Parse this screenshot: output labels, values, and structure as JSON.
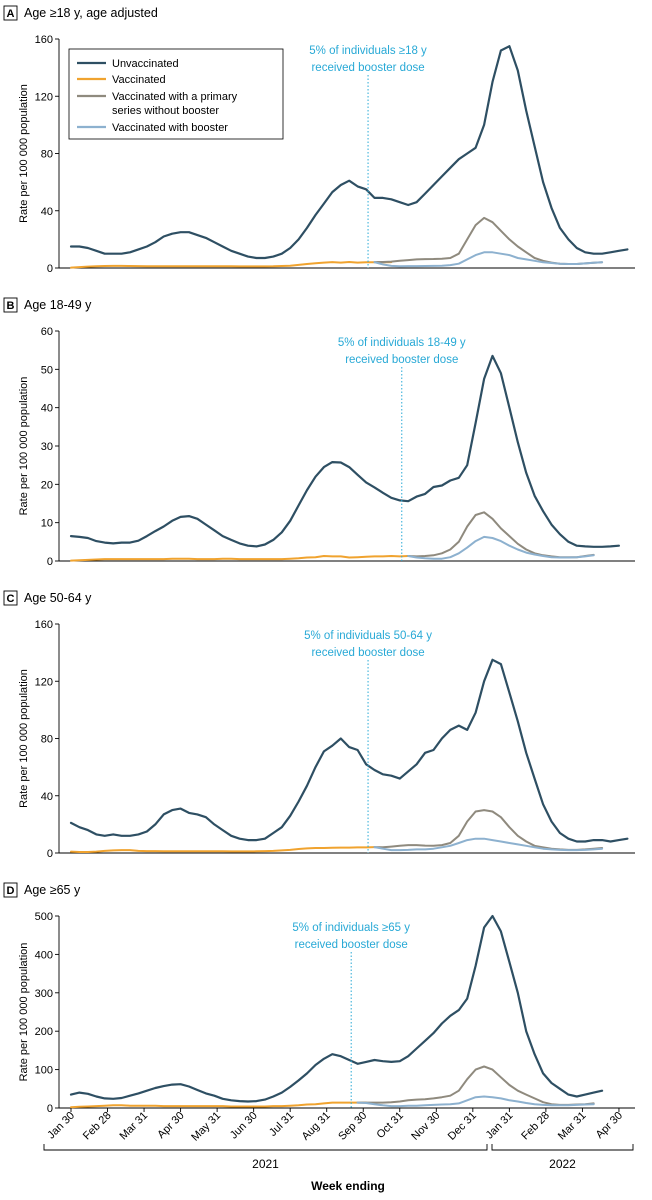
{
  "figure": {
    "xlabel": "Week ending",
    "ylabel": "Rate per 100 000 population",
    "x_ticks": [
      "Jan 30",
      "Feb 28",
      "Mar 31",
      "Apr 30",
      "May 31",
      "Jun 30",
      "Jul 31",
      "Aug 31",
      "Sep 30",
      "Oct 31",
      "Nov 30",
      "Dec 31",
      "Jan 31",
      "Feb 28",
      "Mar 31",
      "Apr 30"
    ],
    "years": [
      "2021",
      "2022"
    ],
    "colors": {
      "unvaccinated": "#2e4f63",
      "vaccinated": "#f0a32f",
      "primary_no_booster": "#8f8a7e",
      "with_booster": "#8db1cf",
      "annotation": "#28a9d6",
      "axis": "#000000"
    }
  },
  "legend": [
    {
      "key": "unvaccinated",
      "label": "Unvaccinated"
    },
    {
      "key": "vaccinated",
      "label": "Vaccinated"
    },
    {
      "key": "primary_no_booster",
      "label": "Vaccinated with a primary series without booster"
    },
    {
      "key": "with_booster",
      "label": "Vaccinated with booster"
    }
  ],
  "chart_data": [
    {
      "type": "line",
      "panel": "A",
      "title": "Age ≥18 y, age adjusted",
      "ylim": [
        0,
        160
      ],
      "yticks": [
        0,
        40,
        80,
        120,
        160
      ],
      "annotation": {
        "line1": "5% of individuals ≥18 y",
        "line2": "received booster dose",
        "x_week": 35
      },
      "series": {
        "unvaccinated": [
          15,
          15,
          14,
          12,
          10,
          10,
          10,
          11,
          13,
          15,
          18,
          22,
          24,
          25,
          25,
          23,
          21,
          18,
          15,
          12,
          10,
          8,
          7,
          7,
          8,
          10,
          14,
          20,
          28,
          37,
          45,
          53,
          58,
          61,
          57,
          55,
          49,
          49,
          48,
          46,
          44,
          46,
          52,
          58,
          64,
          70,
          76,
          80,
          84,
          100,
          130,
          152,
          155,
          138,
          110,
          85,
          60,
          42,
          28,
          20,
          14,
          11,
          10,
          10,
          11,
          12,
          13
        ],
        "vaccinated": [
          0.3,
          0.6,
          1,
          1.2,
          1.4,
          1.5,
          1.5,
          1.4,
          1.3,
          1.2,
          1.2,
          1.2,
          1.2,
          1.2,
          1.2,
          1.2,
          1.2,
          1.2,
          1.2,
          1.2,
          1.1,
          1.1,
          1.1,
          1.1,
          1.2,
          1.4,
          1.6,
          2.2,
          2.8,
          3.3,
          3.8,
          4.1,
          3.8,
          4.2,
          3.8,
          4.0,
          4.0,
          4.0,
          4.1
        ],
        "primary_no_booster": [
          4.1,
          4.2,
          4.5,
          5,
          5.5,
          6,
          6.2,
          6.3,
          6.5,
          7,
          10,
          20,
          30,
          35,
          32,
          26,
          20,
          15,
          11,
          7,
          5,
          3.8,
          3,
          2.8,
          2.8,
          3.2,
          3.6,
          4
        ],
        "with_booster": [
          4.1,
          2.5,
          1.5,
          1.2,
          1.3,
          1.3,
          1.4,
          1.5,
          1.6,
          2,
          3,
          6,
          9,
          11,
          11,
          10,
          9,
          7,
          6,
          5,
          4,
          3.5,
          3,
          2.8,
          2.8,
          3.2,
          3.6,
          4
        ]
      }
    },
    {
      "type": "line",
      "panel": "B",
      "title": "Age 18-49 y",
      "ylim": [
        0,
        60
      ],
      "yticks": [
        0,
        10,
        20,
        30,
        40,
        50,
        60
      ],
      "annotation": {
        "line1": "5% of individuals 18-49 y",
        "line2": "received booster dose",
        "x_week": 39
      },
      "series": {
        "unvaccinated": [
          6.5,
          6.3,
          6,
          5.2,
          4.8,
          4.6,
          4.8,
          4.8,
          5.3,
          6.5,
          7.8,
          9,
          10.5,
          11.5,
          11.7,
          11,
          9.5,
          8,
          6.5,
          5.5,
          4.6,
          4,
          3.8,
          4.3,
          5.5,
          7.5,
          10.5,
          14.5,
          18.5,
          22,
          24.5,
          25.8,
          25.7,
          24.5,
          22.5,
          20.5,
          19.2,
          17.8,
          16.5,
          15.8,
          15.6,
          16.8,
          17.5,
          19.3,
          19.7,
          21,
          21.7,
          25,
          36,
          47.5,
          53.5,
          49,
          40,
          31,
          23,
          17,
          13,
          9.5,
          7,
          5,
          4,
          3.8,
          3.7,
          3.7,
          3.8,
          4
        ],
        "vaccinated": [
          0.1,
          0.2,
          0.3,
          0.4,
          0.5,
          0.5,
          0.5,
          0.5,
          0.5,
          0.5,
          0.5,
          0.5,
          0.6,
          0.6,
          0.6,
          0.5,
          0.5,
          0.5,
          0.6,
          0.6,
          0.5,
          0.5,
          0.5,
          0.5,
          0.5,
          0.5,
          0.6,
          0.7,
          0.9,
          1,
          1.3,
          1.2,
          1.2,
          0.9,
          1,
          1.1,
          1.2,
          1.2,
          1.3,
          1.2,
          1.3
        ],
        "primary_no_booster": [
          1.3,
          1.2,
          1.3,
          1.5,
          2,
          3,
          5,
          9,
          12,
          12.7,
          11,
          8.5,
          6.5,
          4.5,
          3,
          2,
          1.5,
          1.2,
          1,
          1,
          1,
          1.3,
          1.6
        ],
        "with_booster": [
          1.3,
          0.9,
          0.7,
          0.6,
          0.6,
          1,
          2,
          3.5,
          5.2,
          6.3,
          6,
          5.2,
          4,
          3,
          2.2,
          1.7,
          1.3,
          1,
          0.9,
          0.9,
          1,
          1.2,
          1.5
        ]
      }
    },
    {
      "type": "line",
      "panel": "C",
      "title": "Age 50-64 y",
      "ylim": [
        0,
        160
      ],
      "yticks": [
        0,
        40,
        80,
        120,
        160
      ],
      "annotation": {
        "line1": "5% of individuals 50-64 y",
        "line2": "received booster dose",
        "x_week": 35
      },
      "series": {
        "unvaccinated": [
          21,
          18,
          16,
          13,
          12,
          13,
          12,
          12,
          13,
          15,
          20,
          27,
          30,
          31,
          28,
          27,
          25,
          20,
          16,
          12,
          10,
          9,
          9,
          10,
          14,
          18,
          26,
          36,
          47,
          60,
          71,
          75,
          80,
          74,
          72,
          62,
          58,
          55,
          54,
          52,
          57,
          62,
          70,
          72,
          80,
          86,
          89,
          86,
          98,
          120,
          135,
          132,
          112,
          92,
          70,
          52,
          34,
          22,
          14,
          10,
          8,
          8,
          9,
          9,
          8,
          9,
          10
        ],
        "vaccinated": [
          1,
          0.7,
          0.7,
          1,
          1.5,
          1.8,
          2,
          2,
          1.5,
          1.3,
          1.3,
          1.2,
          1.2,
          1.2,
          1.2,
          1.2,
          1.2,
          1.2,
          1.2,
          1.1,
          1.1,
          1.1,
          1.2,
          1.3,
          1.5,
          1.8,
          2.2,
          2.8,
          3.2,
          3.5,
          3.5,
          3.7,
          3.8,
          3.8,
          3.9,
          3.9,
          4.1
        ],
        "primary_no_booster": [
          4.1,
          4,
          4.5,
          5,
          5.5,
          5.5,
          5.2,
          5,
          5.5,
          7,
          12,
          22,
          29,
          30,
          29,
          25,
          18,
          12,
          8,
          5,
          4,
          3,
          2.5,
          2.2,
          2.2,
          2.5,
          3,
          3.5
        ],
        "with_booster": [
          4.1,
          3,
          2,
          2,
          2.2,
          2.5,
          2.5,
          3,
          4,
          5,
          7,
          9,
          10,
          10,
          9,
          8,
          7,
          6,
          5,
          4,
          3,
          2.5,
          2.2,
          2,
          2,
          2.2,
          2.5,
          3
        ]
      }
    },
    {
      "type": "line",
      "panel": "D",
      "title": "Age ≥65 y",
      "ylim": [
        0,
        500
      ],
      "yticks": [
        0,
        100,
        200,
        300,
        400,
        500
      ],
      "annotation": {
        "line1": "5% of individuals ≥65 y",
        "line2": "received booster dose",
        "x_week": 33
      },
      "series": {
        "unvaccinated": [
          35,
          40,
          37,
          30,
          25,
          24,
          26,
          32,
          38,
          45,
          52,
          57,
          61,
          62,
          56,
          47,
          38,
          32,
          24,
          20,
          18,
          17,
          18,
          22,
          30,
          40,
          55,
          72,
          90,
          112,
          128,
          140,
          135,
          125,
          115,
          120,
          125,
          122,
          120,
          122,
          135,
          155,
          175,
          195,
          220,
          240,
          255,
          285,
          370,
          470,
          500,
          460,
          380,
          300,
          200,
          140,
          90,
          65,
          50,
          35,
          30,
          35,
          40,
          45
        ],
        "vaccinated": [
          2,
          3,
          4,
          5,
          6,
          7,
          7,
          6,
          6,
          6,
          6,
          5,
          5,
          5,
          5,
          5,
          5,
          5,
          5,
          4,
          4,
          4,
          4,
          4,
          5,
          5,
          6,
          7,
          9,
          10,
          12,
          14,
          14,
          14,
          14,
          14
        ],
        "primary_no_booster": [
          14,
          14,
          14,
          14,
          15,
          17,
          20,
          22,
          23,
          25,
          28,
          32,
          45,
          75,
          100,
          108,
          100,
          80,
          60,
          45,
          35,
          25,
          15,
          10,
          8,
          8,
          9,
          10,
          12
        ],
        "with_booster": [
          14,
          13,
          10,
          7,
          5,
          5,
          6,
          6,
          7,
          8,
          9,
          10,
          12,
          20,
          28,
          30,
          28,
          25,
          20,
          17,
          13,
          10,
          8,
          7,
          7,
          7,
          8,
          9,
          10
        ]
      }
    }
  ]
}
